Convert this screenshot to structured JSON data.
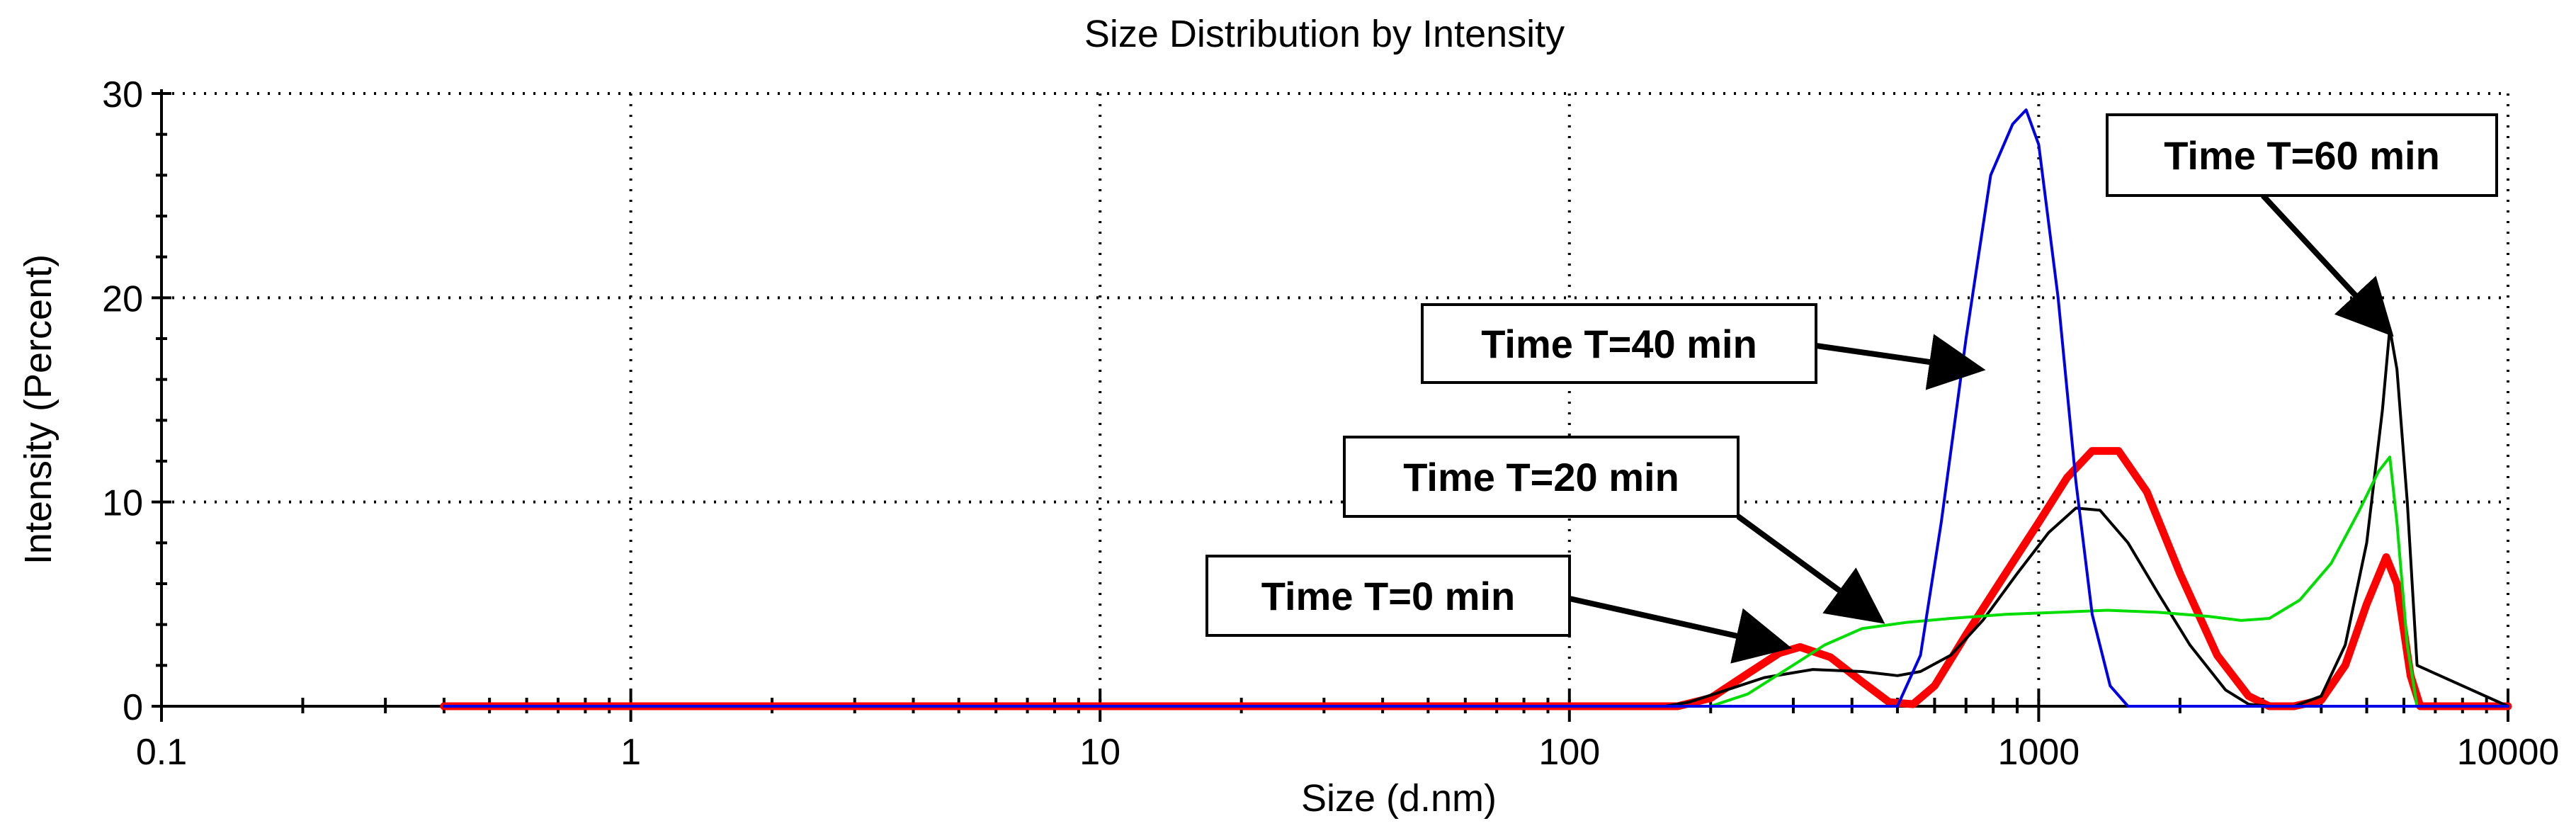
{
  "chart_data": {
    "type": "line",
    "title": "Size Distribution by Intensity",
    "xlabel": "Size (d.nm)",
    "ylabel": "Intensity (Percent)",
    "x_scale": "log",
    "xlim": [
      0.1,
      10000
    ],
    "ylim": [
      0,
      30
    ],
    "x_ticks": [
      0.1,
      1,
      10,
      100,
      1000,
      10000
    ],
    "x_tick_labels": [
      "0.1",
      "1",
      "10",
      "100",
      "1000",
      "10000"
    ],
    "y_ticks": [
      0,
      10,
      20,
      30
    ],
    "y_tick_labels": [
      "0",
      "10",
      "20",
      "30"
    ],
    "grid": true,
    "legend": "none",
    "series": [
      {
        "color": "#ff0000",
        "x": [
          0.4,
          150,
          170,
          200,
          240,
          280,
          310,
          360,
          420,
          480,
          540,
          600,
          700,
          850,
          1000,
          1150,
          1300,
          1480,
          1700,
          2000,
          2400,
          2800,
          3100,
          3500,
          4000,
          4500,
          5000,
          5500,
          5800,
          6200,
          6500,
          10000
        ],
        "y": [
          0,
          0,
          0,
          0.4,
          1.6,
          2.6,
          2.9,
          2.4,
          1.2,
          0.2,
          0.1,
          1.0,
          3.5,
          6.5,
          9.0,
          11.2,
          12.5,
          12.5,
          10.5,
          6.5,
          2.5,
          0.5,
          0,
          0,
          0.3,
          2.0,
          5.0,
          7.3,
          6.0,
          1.5,
          0,
          0
        ]
      },
      {
        "color": "#000000",
        "x": [
          0.4,
          160,
          180,
          210,
          260,
          330,
          420,
          500,
          560,
          650,
          760,
          900,
          1050,
          1200,
          1350,
          1550,
          1800,
          2100,
          2500,
          2800,
          3100,
          3500,
          4000,
          4500,
          5000,
          5400,
          5600,
          5800,
          6100,
          6400,
          10000
        ],
        "y": [
          0,
          0,
          0.2,
          0.7,
          1.4,
          1.8,
          1.7,
          1.5,
          1.7,
          2.5,
          4.2,
          6.5,
          8.5,
          9.7,
          9.6,
          8.0,
          5.5,
          3.0,
          0.8,
          0.1,
          0,
          0,
          0.5,
          3.0,
          8.0,
          14.5,
          18.5,
          16.5,
          10.0,
          2.0,
          0
        ]
      },
      {
        "color": "#00dd00",
        "x": [
          0.4,
          170,
          200,
          240,
          290,
          350,
          420,
          520,
          650,
          850,
          1100,
          1400,
          1800,
          2300,
          2700,
          3100,
          3600,
          4200,
          4800,
          5300,
          5600,
          5800,
          6100,
          6400,
          10000
        ],
        "y": [
          0,
          0,
          0,
          0.6,
          1.8,
          3.0,
          3.8,
          4.1,
          4.3,
          4.5,
          4.6,
          4.7,
          4.6,
          4.4,
          4.2,
          4.3,
          5.2,
          7.0,
          9.5,
          11.5,
          12.2,
          9.0,
          3.0,
          0,
          0
        ]
      },
      {
        "color": "#0000e6",
        "x": [
          0.4,
          400,
          500,
          560,
          620,
          700,
          790,
          880,
          940,
          1000,
          1100,
          1200,
          1300,
          1420,
          1550,
          10000
        ],
        "y": [
          0,
          0,
          0,
          2.5,
          9.0,
          18.0,
          26.0,
          28.5,
          29.2,
          27.5,
          20.0,
          11.0,
          4.5,
          1.0,
          0,
          0
        ]
      }
    ],
    "annotations": [
      {
        "text": "Time T=60 min",
        "points_to": [
          5600,
          18.3
        ]
      },
      {
        "text": "Time T=40 min",
        "points_to": [
          750,
          16.5
        ]
      },
      {
        "text": "Time T=20 min",
        "points_to": [
          460,
          4.2
        ]
      },
      {
        "text": "Time T=0 min",
        "points_to": [
          290,
          2.9
        ]
      }
    ]
  }
}
